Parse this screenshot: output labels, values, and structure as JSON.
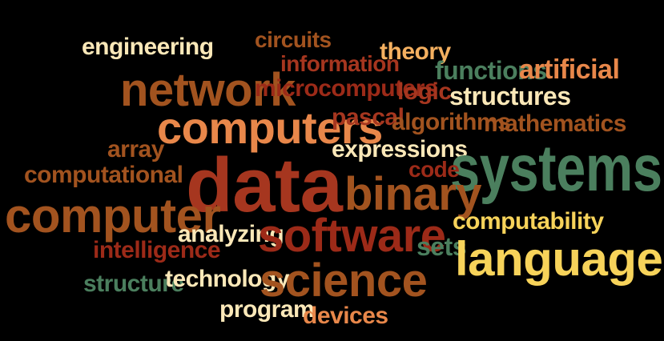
{
  "words": {
    "engineering": "engineering",
    "circuits": "circuits",
    "information": "information",
    "theory": "theory",
    "functions": "functions",
    "artificial": "artificial",
    "network": "network",
    "microcomputers": "microcomputers",
    "logic": "logic",
    "structures": "structures",
    "computers": "computers",
    "pascal": "pascal",
    "algorithms": "algorithms",
    "mathematics": "mathematics",
    "array": "array",
    "expressions": "expressions",
    "systems": "systems",
    "computational": "computational",
    "data": "data",
    "code": "code",
    "binary": "binary",
    "computer": "computer",
    "computability": "computability",
    "analyzing": "analyzing",
    "software": "software",
    "intelligence": "intelligence",
    "sets": "sets",
    "language": "language",
    "structure": "structure",
    "technology": "technology",
    "science": "science",
    "program": "program",
    "devices": "devices"
  },
  "colors": {
    "background": "#000000",
    "cream": "#fbe8b8",
    "orange": "#e8874a",
    "rust": "#a6361f",
    "brown": "#a2531f",
    "red": "#9c2a18",
    "green": "#4b7f5e",
    "yellow": "#f7d35a",
    "peach": "#f4b060"
  }
}
